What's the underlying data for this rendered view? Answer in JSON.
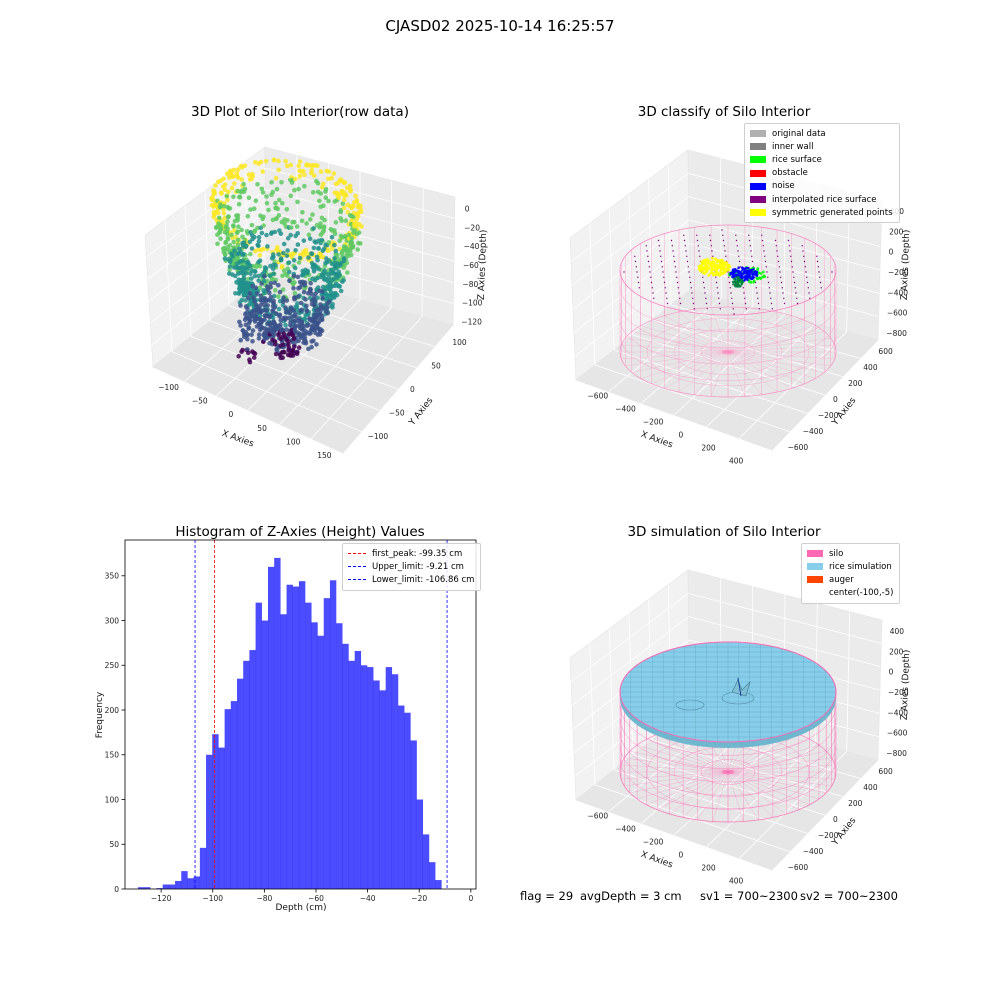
{
  "suptitle": "CJASD02 2025-10-14 16:25:57",
  "chart_data": [
    {
      "type": "scatter",
      "title": "3D Plot of Silo Interior(row data)",
      "xlabel": "X Axies",
      "ylabel": "Y Axies",
      "zlabel": "Z Axies (Depth)",
      "x_ticks": [
        "−100",
        "−50",
        "0",
        "50",
        "100",
        "150"
      ],
      "y_ticks": [
        "−100",
        "−50",
        "0",
        "50",
        "100"
      ],
      "z_ticks": [
        "0",
        "−20",
        "−40",
        "−60",
        "−80",
        "−100",
        "−120"
      ],
      "xlim": [
        -120,
        150
      ],
      "ylim": [
        -120,
        110
      ],
      "zlim": [
        -135,
        5
      ],
      "colormap": [
        "#440154",
        "#3b528b",
        "#21918c",
        "#5ec962",
        "#fde725"
      ]
    },
    {
      "type": "scatter",
      "title": "3D classify of Silo Interior",
      "xlabel": "X Axies",
      "ylabel": "Y Axies",
      "zlabel": "Z Axies (Depth)",
      "x_ticks": [
        "−600",
        "−400",
        "−200",
        "0",
        "200",
        "400"
      ],
      "y_ticks": [
        "−600",
        "−400",
        "−200",
        "0",
        "200",
        "400",
        "600"
      ],
      "z_ticks": [
        "400",
        "200",
        "0",
        "−200",
        "−400",
        "−600",
        "−800"
      ],
      "legend": [
        {
          "label": "original data",
          "color": "#b0b0b0"
        },
        {
          "label": "inner wall",
          "color": "#808080"
        },
        {
          "label": "rice surface",
          "color": "#00ff00"
        },
        {
          "label": "obstacle",
          "color": "#ff0000"
        },
        {
          "label": "noise",
          "color": "#0000ff"
        },
        {
          "label": "interpolated rice surface",
          "color": "#800080"
        },
        {
          "label": "symmetric generated points",
          "color": "#ffff00"
        }
      ]
    },
    {
      "type": "bar",
      "title": "Histogram of Z-Axies (Height) Values",
      "xlabel": "Depth (cm)",
      "ylabel": "Frequency",
      "xlim": [
        -134,
        2
      ],
      "ylim": [
        0,
        390
      ],
      "x_ticks": [
        -120,
        -100,
        -80,
        -60,
        -40,
        -20,
        0
      ],
      "y_ticks": [
        0,
        50,
        100,
        150,
        200,
        250,
        300,
        350
      ],
      "bin_width": 2.4,
      "bin_start": -129,
      "values": [
        2,
        2,
        0,
        1,
        5,
        5,
        9,
        20,
        12,
        14,
        46,
        150,
        173,
        158,
        201,
        210,
        235,
        255,
        267,
        320,
        300,
        360,
        370,
        307,
        340,
        338,
        344,
        320,
        298,
        283,
        325,
        345,
        297,
        274,
        255,
        266,
        250,
        248,
        233,
        222,
        248,
        240,
        205,
        197,
        166,
        100,
        61,
        30,
        10
      ],
      "bar_color": "#0000ff",
      "vlines": [
        {
          "x": -99.35,
          "color": "#ff0000",
          "label": "first_peak: -99.35 cm"
        },
        {
          "x": -9.21,
          "color": "#0000ff",
          "label": "Upper_limit: -9.21 cm"
        },
        {
          "x": -106.86,
          "color": "#0000ff",
          "label": "Lower_limit: -106.86 cm"
        }
      ]
    },
    {
      "type": "scatter",
      "title": "3D simulation of Silo Interior",
      "xlabel": "X Axies",
      "ylabel": "Y Axies",
      "zlabel": "Z Axies (Depth)",
      "x_ticks": [
        "−600",
        "−400",
        "−200",
        "0",
        "200",
        "400"
      ],
      "y_ticks": [
        "−600",
        "−400",
        "−200",
        "0",
        "200",
        "400",
        "600"
      ],
      "z_ticks": [
        "400",
        "200",
        "0",
        "−200",
        "−400",
        "−600",
        "−800"
      ],
      "legend": [
        {
          "label": "silo",
          "color": "#ff69b4"
        },
        {
          "label": "rice simulation",
          "color": "#87ceeb"
        },
        {
          "label": "auger",
          "color": "#ff4500"
        },
        {
          "label": "center(-100,-5)",
          "color": ""
        }
      ]
    }
  ],
  "status": {
    "flag": "flag = 29",
    "avg_depth": "avgDepth = 3 cm",
    "sv1": "sv1 = 700~2300",
    "sv2": "sv2 = 700~2300"
  }
}
